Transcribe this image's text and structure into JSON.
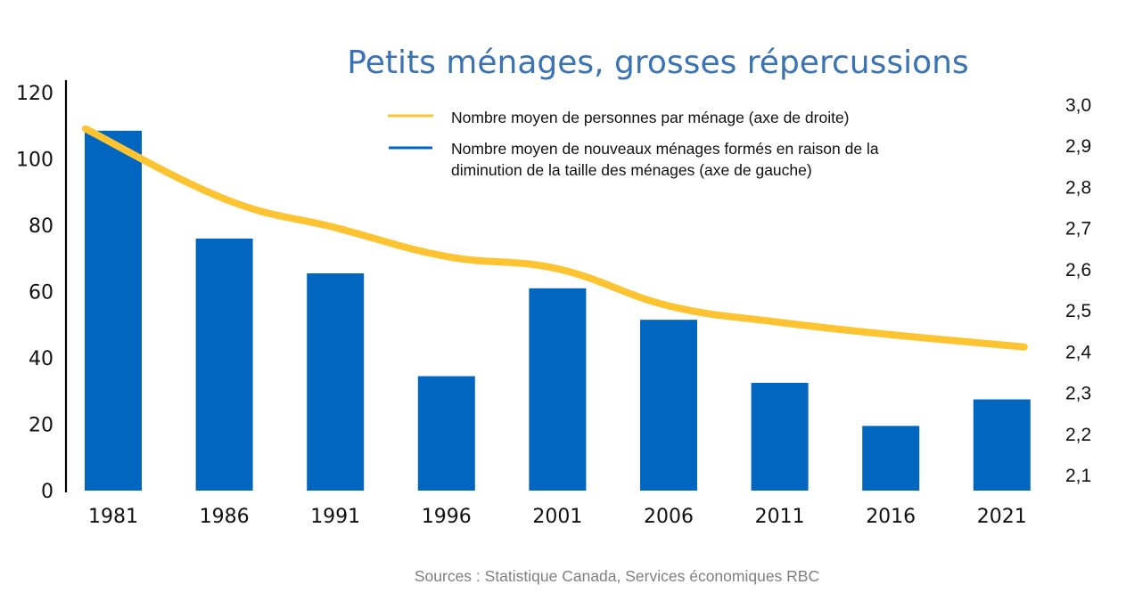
{
  "chart_data": {
    "type": "bar",
    "title": "Petits ménages, grosses répercussions",
    "source": "Sources : Statistique Canada, Services économiques RBC",
    "categories": [
      "1981",
      "1986",
      "1991",
      "1996",
      "2001",
      "2006",
      "2011",
      "2016",
      "2021"
    ],
    "series": [
      {
        "name": "Nombre moyen de nouveaux ménages formés en raison de la diminution de la taille des ménages (axe de gauche)",
        "legend_lines": [
          "Nombre moyen de nouveaux ménages formés en raison de la",
          "diminution de la taille des ménages (axe de gauche)"
        ],
        "type": "bar",
        "axis": "left",
        "color": "#0066c0",
        "values": [
          108.5,
          76,
          65.5,
          34.5,
          61,
          51.5,
          32.5,
          19.5,
          27.5
        ]
      },
      {
        "name": "Nombre moyen de personnes par ménage (axe de droite)",
        "legend_lines": [
          "Nombre moyen de personnes par ménage (axe de droite)"
        ],
        "type": "line",
        "axis": "right",
        "color": "#fdc330",
        "values": [
          2.94,
          2.77,
          2.7,
          2.63,
          2.6,
          2.51,
          2.47,
          2.44,
          2.41
        ]
      }
    ],
    "left_axis": {
      "label": "",
      "ylim": [
        0,
        120
      ],
      "ticks": [
        0,
        20,
        40,
        60,
        80,
        100,
        120
      ],
      "tick_labels": [
        "0",
        "20",
        "40",
        "60",
        "80",
        "100",
        "120"
      ]
    },
    "right_axis": {
      "label": "",
      "ylim": [
        2.1,
        3.0
      ],
      "ticks": [
        2.1,
        2.2,
        2.3,
        2.4,
        2.5,
        2.6,
        2.7,
        2.8,
        2.9,
        3.0
      ],
      "tick_labels": [
        "2,1",
        "2,2",
        "2,3",
        "2,4",
        "2,5",
        "2,6",
        "2,7",
        "2,8",
        "2,9",
        "3,0"
      ]
    },
    "xlabel": "",
    "grid": false,
    "legend_position": "top-center",
    "colors": {
      "title": "#3a73b5",
      "bar": "#0066c0",
      "line": "#fdc330",
      "source": "#7f7f7f"
    }
  }
}
